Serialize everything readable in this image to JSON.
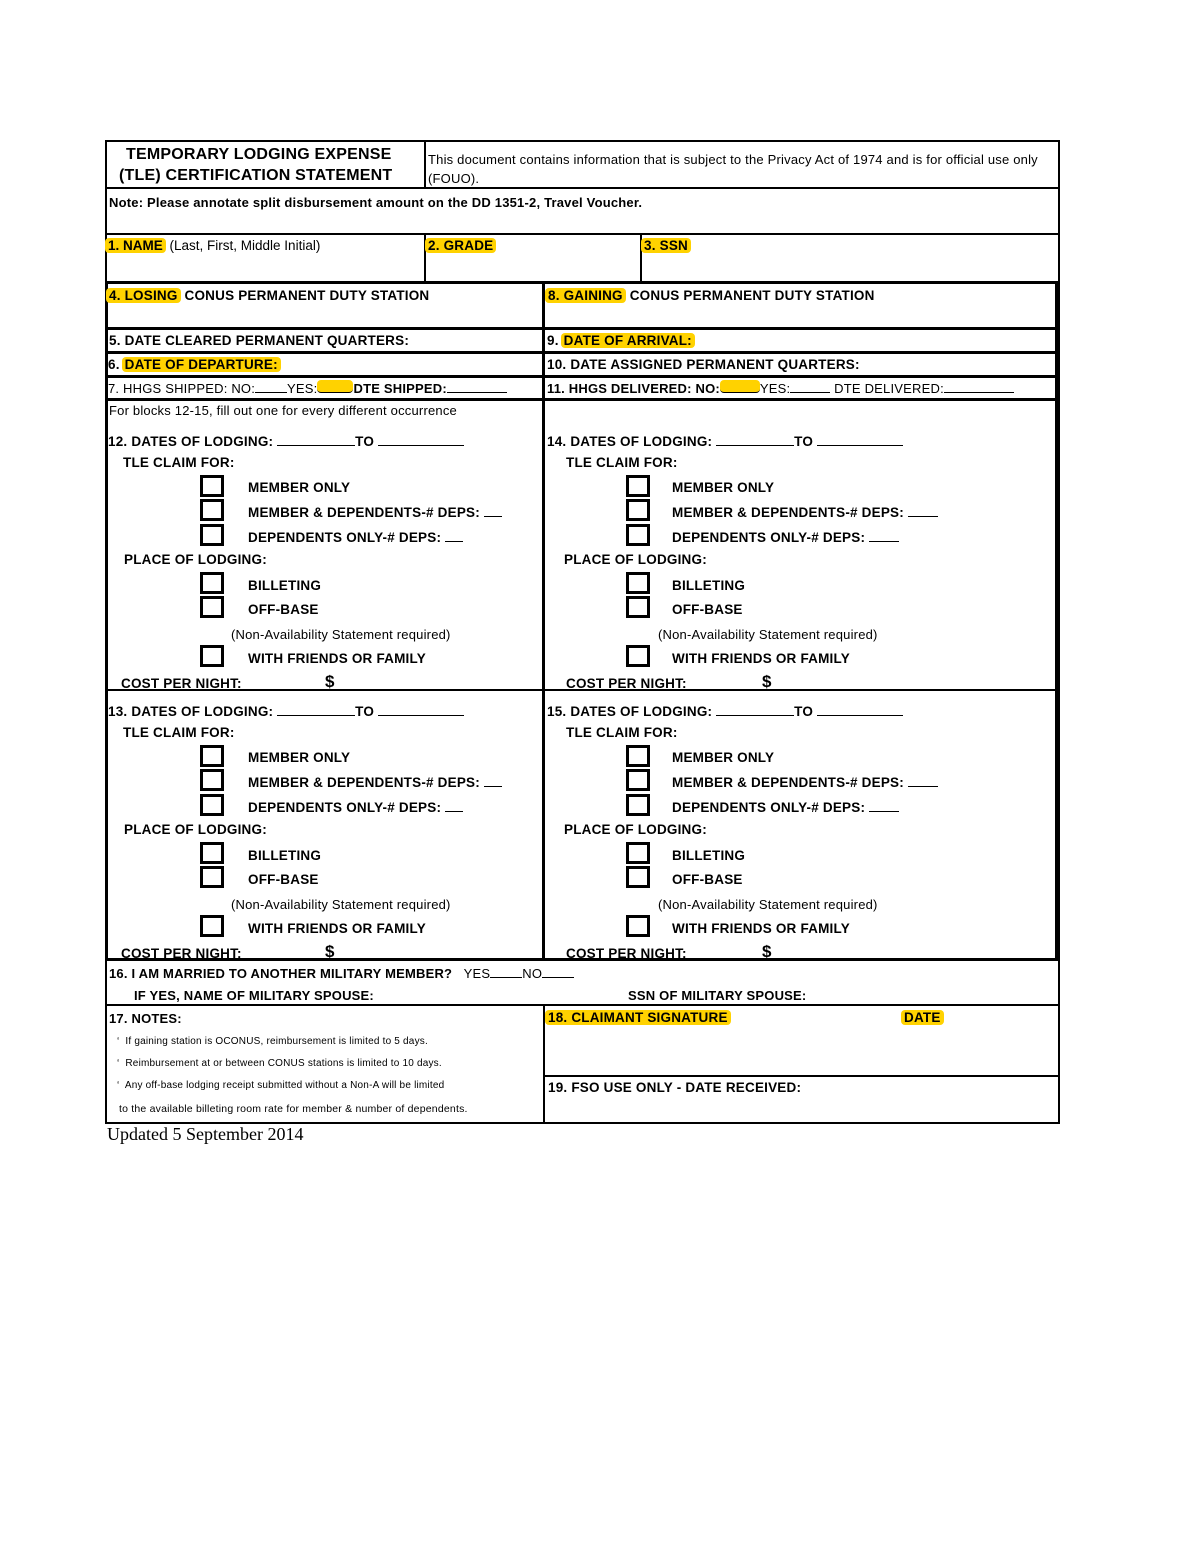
{
  "header": {
    "title_line1": "TEMPORARY LODGING EXPENSE",
    "title_line2": "(TLE) CERTIFICATION STATEMENT",
    "privacy": "This document contains information that is subject to the Privacy Act of 1974 and is for official use only (FOUO)."
  },
  "note": "Note:  Please annotate split disbursement amount on the DD 1351-2, Travel Voucher.",
  "fields": {
    "f1_num": "1. NAME",
    "f1_hint": "(Last, First, Middle Initial)",
    "f2": "2. GRADE",
    "f3": "3. SSN",
    "f4_hl": "4. LOSING",
    "f4_rest": "CONUS PERMANENT DUTY STATION",
    "f8_hl": "8. GAINING",
    "f8_rest": "CONUS PERMANENT DUTY STATION",
    "f5": "5. DATE CLEARED PERMANENT QUARTERS:",
    "f9_num": "9.",
    "f9_hl": "DATE OF ARRIVAL:",
    "f6_num": "6.",
    "f6_hl": "DATE OF DEPARTURE:",
    "f10": "10. DATE ASSIGNED PERMANENT QUARTERS:",
    "f7_a": "7. HHGS SHIPPED: NO:",
    "f7_b": "YES:",
    "f7_c": "DTE SHIPPED:",
    "f11_a": "11. HHGS DELIVERED: NO:",
    "f11_b": "YES:",
    "f11_c": "DTE DELIVERED:"
  },
  "blocks_intro": "For blocks 12-15, fill out one for every different occurrence",
  "blocks": [
    {
      "title": "12. DATES OF LODGING:",
      "to": "TO"
    },
    {
      "title": "14. DATES OF LODGING:",
      "to": "TO"
    },
    {
      "title": "13. DATES OF LODGING:",
      "to": "TO"
    },
    {
      "title": "15. DATES OF LODGING:",
      "to": "TO"
    }
  ],
  "block_labels": {
    "claim_for": "TLE CLAIM FOR:",
    "member_only": "MEMBER ONLY",
    "member_deps": "MEMBER & DEPENDENTS-# DEPS:",
    "deps_only": "DEPENDENTS ONLY-# DEPS:",
    "place": "PLACE OF LODGING:",
    "billeting": "BILLETING",
    "offbase": "OFF-BASE",
    "non_avail": "(Non-Availability Statement required)",
    "friends": "WITH FRIENDS OR FAMILY",
    "cost": "COST PER NIGHT:",
    "dollar": "$"
  },
  "f16": {
    "question": "16. I AM MARRIED TO ANOTHER MILITARY MEMBER?",
    "yes": "YES",
    "no": "NO",
    "spouse_name": "IF YES, NAME OF MILITARY SPOUSE:",
    "spouse_ssn": "SSN OF MILITARY SPOUSE:"
  },
  "f17": {
    "title": "17. NOTES:",
    "notes": [
      "If gaining station is OCONUS, reimbursement is limited to 5 days.",
      "Reimbursement at or between CONUS stations is limited to 10 days.",
      "Any off-base lodging receipt submitted without a Non-A will be limited",
      "to the available billeting room rate for member & number of dependents."
    ]
  },
  "f18": {
    "title": "18. CLAIMANT SIGNATURE",
    "date": "DATE"
  },
  "f19": "19. FSO USE ONLY - DATE RECEIVED:",
  "footer": "Updated 5 September 2014",
  "colors": {
    "highlight": "#ffd200"
  }
}
